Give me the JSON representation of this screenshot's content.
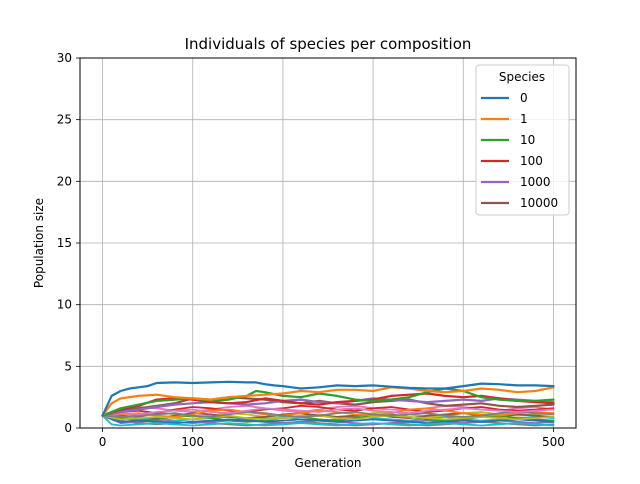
{
  "chart_data": {
    "type": "line",
    "title": "Individuals of species per composition",
    "xlabel": "Generation",
    "ylabel": "Population size",
    "xlim": [
      -25,
      525
    ],
    "ylim": [
      0,
      30
    ],
    "xticks": [
      0,
      100,
      200,
      300,
      400,
      500
    ],
    "yticks": [
      0,
      5,
      10,
      15,
      20,
      25,
      30
    ],
    "grid": true,
    "legend": {
      "title": "Species",
      "position": "top-right",
      "entries": [
        "0",
        "1",
        "10",
        "100",
        "1000",
        "10000"
      ]
    },
    "colors": [
      "#1f77b4",
      "#ff7f0e",
      "#2ca02c",
      "#d62728",
      "#9467bd",
      "#8c564b",
      "#e377c2",
      "#7f7f7f",
      "#bcbd22",
      "#17becf"
    ],
    "series": [
      {
        "name": "0",
        "x": [
          0,
          10,
          20,
          30,
          40,
          50,
          60,
          80,
          100,
          120,
          140,
          160,
          170,
          180,
          190,
          200,
          210,
          220,
          240,
          260,
          280,
          300,
          320,
          340,
          360,
          380,
          400,
          420,
          440,
          460,
          480,
          500
        ],
        "values": [
          1.0,
          2.6,
          3.0,
          3.2,
          3.3,
          3.4,
          3.65,
          3.7,
          3.65,
          3.7,
          3.75,
          3.7,
          3.7,
          3.55,
          3.45,
          3.4,
          3.3,
          3.2,
          3.3,
          3.45,
          3.4,
          3.45,
          3.35,
          3.25,
          3.2,
          3.2,
          3.4,
          3.6,
          3.55,
          3.45,
          3.45,
          3.4
        ]
      },
      {
        "name": "1",
        "x": [
          0,
          10,
          20,
          40,
          60,
          80,
          100,
          120,
          140,
          160,
          180,
          200,
          220,
          240,
          260,
          280,
          300,
          320,
          340,
          360,
          380,
          400,
          420,
          440,
          460,
          480,
          500
        ],
        "values": [
          1.0,
          2.0,
          2.4,
          2.6,
          2.7,
          2.5,
          2.4,
          2.3,
          2.5,
          2.6,
          2.7,
          2.8,
          3.0,
          2.9,
          3.1,
          3.1,
          3.0,
          3.3,
          3.2,
          3.0,
          2.9,
          3.0,
          3.2,
          3.1,
          2.9,
          3.0,
          3.3
        ]
      },
      {
        "name": "10",
        "x": [
          0,
          20,
          40,
          60,
          80,
          100,
          120,
          140,
          160,
          170,
          180,
          200,
          220,
          240,
          260,
          280,
          300,
          320,
          340,
          360,
          380,
          400,
          420,
          440,
          460,
          480,
          500
        ],
        "values": [
          1.0,
          1.6,
          1.9,
          2.2,
          2.3,
          2.4,
          2.2,
          2.3,
          2.6,
          3.0,
          2.9,
          2.6,
          2.5,
          2.8,
          2.6,
          2.3,
          2.2,
          2.3,
          2.5,
          2.9,
          3.2,
          3.0,
          2.5,
          2.3,
          2.2,
          2.2,
          2.3
        ]
      },
      {
        "name": "100",
        "x": [
          0,
          20,
          40,
          60,
          80,
          100,
          120,
          140,
          160,
          180,
          200,
          220,
          240,
          260,
          280,
          300,
          320,
          340,
          360,
          380,
          400,
          420,
          440,
          460,
          480,
          500
        ],
        "values": [
          1.0,
          1.5,
          1.8,
          2.3,
          2.4,
          2.3,
          2.1,
          2.0,
          2.1,
          2.4,
          2.2,
          2.0,
          1.9,
          2.1,
          2.2,
          2.3,
          2.6,
          2.7,
          2.8,
          2.6,
          2.5,
          2.6,
          2.4,
          2.2,
          2.1,
          2.0
        ]
      },
      {
        "name": "1000",
        "x": [
          0,
          20,
          40,
          60,
          80,
          100,
          120,
          140,
          160,
          180,
          200,
          220,
          240,
          260,
          280,
          300,
          320,
          340,
          360,
          380,
          400,
          420,
          440,
          460,
          480,
          500
        ],
        "values": [
          1.0,
          1.3,
          1.5,
          1.7,
          1.9,
          2.0,
          2.1,
          2.0,
          1.9,
          2.0,
          2.2,
          2.3,
          2.1,
          2.0,
          2.2,
          2.4,
          2.3,
          2.2,
          2.1,
          2.2,
          2.3,
          2.2,
          2.4,
          2.3,
          2.2,
          2.1
        ]
      },
      {
        "name": "10000",
        "x": [
          0,
          20,
          40,
          60,
          80,
          100,
          120,
          140,
          160,
          180,
          200,
          220,
          240,
          260,
          280,
          300,
          320,
          340,
          360,
          380,
          400,
          420,
          440,
          460,
          480,
          500
        ],
        "values": [
          1.0,
          1.4,
          1.6,
          1.8,
          2.0,
          2.4,
          2.3,
          2.5,
          2.4,
          2.3,
          2.1,
          2.0,
          2.2,
          2.0,
          1.9,
          2.1,
          2.2,
          2.3,
          2.0,
          1.8,
          1.9,
          2.0,
          1.8,
          1.7,
          1.8,
          1.9
        ]
      },
      {
        "x": [
          0,
          20,
          40,
          60,
          80,
          100,
          120,
          140,
          160,
          180,
          200,
          220,
          240,
          260,
          280,
          300,
          320,
          340,
          360,
          380,
          400,
          420,
          440,
          460,
          480,
          500
        ],
        "values": [
          1.0,
          1.2,
          1.1,
          1.3,
          1.4,
          1.5,
          1.3,
          1.2,
          1.4,
          1.6,
          1.5,
          1.4,
          1.3,
          1.5,
          1.6,
          1.4,
          1.3,
          1.2,
          1.4,
          1.5,
          1.6,
          1.5,
          1.4,
          1.3,
          1.4,
          1.5
        ]
      },
      {
        "x": [
          0,
          20,
          40,
          60,
          80,
          100,
          120,
          140,
          160,
          180,
          200,
          220,
          240,
          260,
          280,
          300,
          320,
          340,
          360,
          380,
          400,
          420,
          440,
          460,
          480,
          500
        ],
        "values": [
          1.0,
          0.9,
          1.0,
          1.1,
          1.2,
          1.0,
          0.9,
          1.1,
          1.3,
          1.2,
          1.0,
          0.9,
          1.0,
          1.2,
          1.3,
          1.1,
          1.0,
          1.1,
          1.2,
          1.0,
          0.9,
          1.0,
          1.2,
          1.3,
          1.2,
          1.1
        ]
      },
      {
        "x": [
          0,
          20,
          40,
          60,
          80,
          100,
          120,
          140,
          160,
          180,
          200,
          220,
          240,
          260,
          280,
          300,
          320,
          340,
          360,
          380,
          400,
          420,
          440,
          460,
          480,
          500
        ],
        "values": [
          1.0,
          0.7,
          0.8,
          0.9,
          0.8,
          0.7,
          0.9,
          1.0,
          0.8,
          0.7,
          0.8,
          0.9,
          1.0,
          0.8,
          0.7,
          0.9,
          1.0,
          0.9,
          0.8,
          0.7,
          0.8,
          0.9,
          0.8,
          0.7,
          0.8,
          0.9
        ]
      },
      {
        "x": [
          0,
          10,
          20,
          40,
          60,
          80,
          100,
          120,
          140,
          160,
          180,
          200,
          220,
          240,
          260,
          280,
          300,
          320,
          340,
          360,
          380,
          400,
          420,
          440,
          460,
          480,
          500
        ],
        "values": [
          1.0,
          0.3,
          0.2,
          0.3,
          0.4,
          0.3,
          0.2,
          0.3,
          0.4,
          0.3,
          0.2,
          0.3,
          0.4,
          0.3,
          0.2,
          0.3,
          0.4,
          0.3,
          0.2,
          0.3,
          0.4,
          0.3,
          0.2,
          0.3,
          0.4,
          0.3,
          0.2
        ]
      },
      {
        "x": [
          0,
          20,
          40,
          60,
          80,
          100,
          120,
          140,
          160,
          180,
          200,
          220,
          240,
          260,
          280,
          300,
          320,
          340,
          360,
          380,
          400,
          420,
          440,
          460,
          480,
          500
        ],
        "values": [
          1.0,
          0.5,
          0.6,
          0.5,
          0.4,
          0.5,
          0.6,
          0.7,
          0.6,
          0.5,
          0.6,
          0.7,
          0.6,
          0.5,
          0.6,
          0.7,
          0.6,
          0.5,
          0.4,
          0.5,
          0.6,
          0.5,
          0.6,
          0.7,
          0.6,
          0.5
        ]
      },
      {
        "x": [
          0,
          20,
          40,
          60,
          80,
          100,
          120,
          140,
          160,
          180,
          200,
          220,
          240,
          260,
          280,
          300,
          320,
          340,
          360,
          380,
          400,
          420,
          440,
          460,
          480,
          500
        ],
        "values": [
          1.0,
          1.1,
          1.2,
          1.0,
          0.9,
          1.1,
          1.4,
          1.5,
          1.3,
          1.1,
          1.0,
          1.2,
          1.4,
          1.3,
          1.1,
          1.0,
          1.2,
          1.5,
          1.6,
          1.4,
          1.2,
          1.1,
          1.0,
          1.2,
          1.3,
          1.2
        ]
      },
      {
        "x": [
          0,
          20,
          40,
          60,
          80,
          100,
          120,
          140,
          160,
          180,
          200,
          220,
          240,
          260,
          280,
          300,
          320,
          340,
          360,
          380,
          400,
          420,
          440,
          460,
          480,
          500
        ],
        "values": [
          1.0,
          0.8,
          0.6,
          0.7,
          0.9,
          1.0,
          0.8,
          0.6,
          0.5,
          0.6,
          0.8,
          0.9,
          0.7,
          0.6,
          0.8,
          1.0,
          1.1,
          0.9,
          0.7,
          0.6,
          0.7,
          0.9,
          1.0,
          0.8,
          0.7,
          0.6
        ]
      },
      {
        "x": [
          0,
          20,
          40,
          60,
          80,
          100,
          120,
          140,
          160,
          180,
          200,
          220,
          240,
          260,
          280,
          300,
          320,
          340,
          360,
          380,
          400,
          420,
          440,
          460,
          480,
          500
        ],
        "values": [
          1.0,
          1.3,
          1.4,
          1.2,
          1.5,
          1.7,
          1.6,
          1.4,
          1.3,
          1.5,
          1.6,
          1.8,
          1.7,
          1.5,
          1.4,
          1.6,
          1.7,
          1.5,
          1.3,
          1.4,
          1.6,
          1.7,
          1.5,
          1.4,
          1.5,
          1.6
        ]
      },
      {
        "x": [
          0,
          20,
          40,
          60,
          80,
          100,
          120,
          140,
          160,
          180,
          200,
          220,
          240,
          260,
          280,
          300,
          320,
          340,
          360,
          380,
          400,
          420,
          440,
          460,
          480,
          500
        ],
        "values": [
          1.0,
          0.4,
          0.5,
          0.6,
          0.5,
          0.4,
          0.5,
          0.6,
          0.7,
          0.5,
          0.4,
          0.5,
          0.6,
          0.5,
          0.4,
          0.3,
          0.4,
          0.5,
          0.6,
          0.5,
          0.4,
          0.5,
          0.6,
          0.5,
          0.4,
          0.5
        ]
      },
      {
        "x": [
          0,
          20,
          40,
          60,
          80,
          100,
          120,
          140,
          160,
          180,
          200,
          220,
          240,
          260,
          280,
          300,
          320,
          340,
          360,
          380,
          400,
          420,
          440,
          460,
          480,
          500
        ],
        "values": [
          1.0,
          1.0,
          0.9,
          0.8,
          1.0,
          1.2,
          1.1,
          0.9,
          0.8,
          0.9,
          1.1,
          1.2,
          1.0,
          0.9,
          1.0,
          1.1,
          0.9,
          0.8,
          1.0,
          1.1,
          1.2,
          1.0,
          0.9,
          1.1,
          1.0,
          0.9
        ]
      },
      {
        "x": [
          0,
          20,
          40,
          60,
          80,
          100,
          120,
          140,
          160,
          180,
          200,
          220,
          240,
          260,
          280,
          300,
          320,
          340,
          360,
          380,
          400,
          420,
          440,
          460,
          480,
          500
        ],
        "values": [
          1.0,
          1.5,
          1.7,
          1.6,
          1.4,
          1.3,
          1.5,
          1.7,
          1.8,
          1.6,
          1.4,
          1.3,
          1.5,
          1.7,
          1.8,
          1.6,
          1.5,
          1.4,
          1.6,
          1.8,
          1.7,
          1.5,
          1.4,
          1.6,
          1.7,
          1.5
        ]
      },
      {
        "x": [
          0,
          20,
          40,
          60,
          80,
          100,
          120,
          140,
          160,
          180,
          200,
          220,
          240,
          260,
          280,
          300,
          320,
          340,
          360,
          380,
          400,
          420,
          440,
          460,
          480,
          500
        ],
        "values": [
          1.0,
          0.6,
          0.4,
          0.3,
          0.4,
          0.5,
          0.4,
          0.3,
          0.2,
          0.3,
          0.4,
          0.5,
          0.4,
          0.3,
          0.2,
          0.3,
          0.4,
          0.3,
          0.2,
          0.3,
          0.4,
          0.5,
          0.4,
          0.3,
          0.2,
          0.3
        ]
      },
      {
        "x": [
          0,
          20,
          40,
          60,
          80,
          100,
          120,
          140,
          160,
          180,
          200,
          220,
          240,
          260,
          280,
          300,
          320,
          340,
          360,
          380,
          400,
          420,
          440,
          460,
          480,
          500
        ],
        "values": [
          1.0,
          1.2,
          1.0,
          1.3,
          1.1,
          0.9,
          1.0,
          1.2,
          1.1,
          0.9,
          0.8,
          1.0,
          1.1,
          0.9,
          1.0,
          1.2,
          1.3,
          1.1,
          0.9,
          1.0,
          1.2,
          1.3,
          1.1,
          1.0,
          1.1,
          1.2
        ]
      },
      {
        "x": [
          0,
          20,
          40,
          60,
          80,
          100,
          120,
          140,
          160,
          180,
          200,
          220,
          240,
          260,
          280,
          300,
          320,
          340,
          360,
          380,
          400,
          420,
          440,
          460,
          480,
          500
        ],
        "values": [
          1.0,
          0.9,
          0.7,
          0.8,
          0.6,
          0.7,
          0.8,
          0.9,
          0.7,
          0.8,
          0.9,
          0.7,
          0.6,
          0.7,
          0.9,
          0.8,
          0.7,
          0.6,
          0.8,
          0.9,
          0.7,
          0.6,
          0.7,
          0.8,
          0.9,
          0.8
        ]
      }
    ]
  }
}
